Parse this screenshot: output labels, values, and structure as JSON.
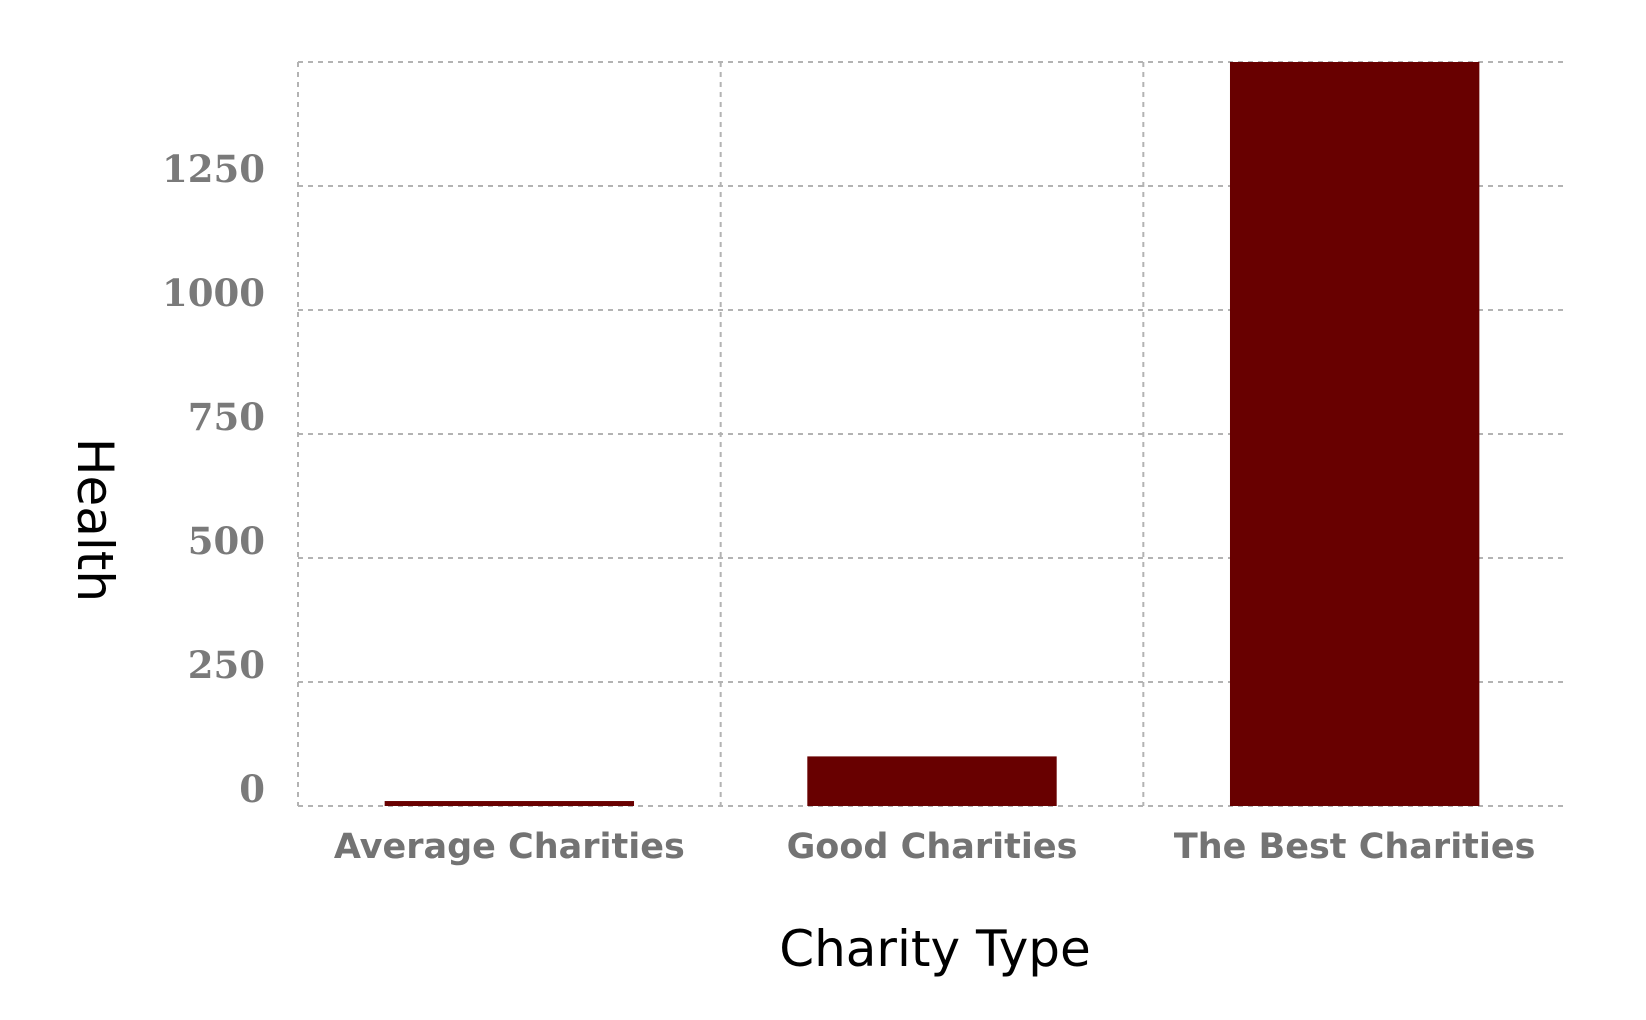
{
  "chart_data": {
    "type": "bar",
    "categories": [
      "Average Charities",
      "Good Charities",
      "The Best Charities"
    ],
    "series": [
      {
        "values": [
          10,
          100,
          1500
        ]
      }
    ],
    "xlabel": "Charity Type",
    "ylabel": "Health",
    "yticks": [
      0,
      250,
      500,
      750,
      1000,
      1250
    ],
    "ytick_labels": [
      "0",
      "250",
      "500",
      "750",
      "1000",
      "1250"
    ],
    "ylim": [
      0,
      1500
    ],
    "grid": true,
    "legend": "none",
    "colors": {
      "bar": "#680000",
      "grid": "#b3b3b3",
      "tick_text": "#7a7a7a"
    }
  }
}
